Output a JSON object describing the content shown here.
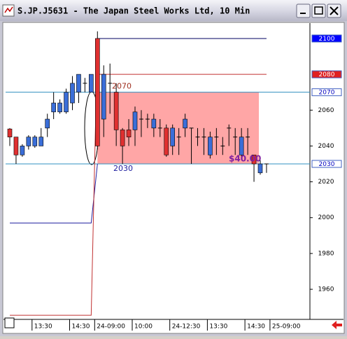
{
  "chart_data": {
    "type": "candlestick",
    "title": "S.JP.J5631 - The Japan Steel Works Ltd, 10 Min",
    "categories": [
      null,
      null,
      null,
      null,
      "13:30",
      null,
      null,
      null,
      null,
      null,
      "14:30",
      null,
      null,
      null,
      "24-09:00",
      null,
      null,
      null,
      null,
      null,
      "10:00",
      null,
      null,
      null,
      null,
      null,
      "24-12:30",
      null,
      null,
      null,
      null,
      null,
      "13:30",
      null,
      null,
      null,
      null,
      null,
      "14:30",
      null,
      null,
      null,
      "25-09:00"
    ],
    "open": [
      2049.5,
      2045,
      2035,
      2040,
      2040,
      2040,
      2050,
      2059,
      2059,
      2059,
      2064,
      2070,
      2075,
      2070,
      2100,
      2055,
      2075,
      2070,
      2049,
      2049,
      2049,
      2055,
      2055,
      2050,
      2050,
      2050,
      2040,
      2045,
      2050,
      2050,
      2045,
      2045,
      2035,
      2045,
      2040,
      2050,
      2045,
      2035,
      2045,
      2035,
      2025,
      2030,
      null
    ],
    "high": [
      2050,
      2045,
      2041,
      2046,
      2046,
      2050,
      2058,
      2070,
      2066,
      2072,
      2079,
      2080,
      2078,
      2080,
      2104,
      2085,
      2086,
      2075,
      2050,
      2055,
      2062,
      2060,
      2058,
      2058,
      2055,
      2052,
      2052,
      2050,
      2058,
      2050,
      2050,
      2050,
      2048,
      2050,
      2045,
      2052,
      2050,
      2050,
      2050,
      2035,
      2032,
      2030,
      null
    ],
    "low": [
      2040,
      2030,
      2034,
      2038,
      2039,
      2040,
      2045,
      2055,
      2058,
      2058,
      2060,
      2064,
      2070,
      2070,
      2038,
      2045,
      2058,
      2040,
      2030,
      2040,
      2040,
      2045,
      2050,
      2045,
      2045,
      2034,
      2035,
      2035,
      2045,
      2030,
      2040,
      2035,
      2033,
      2035,
      2035,
      2040,
      2035,
      2033,
      2035,
      2020,
      2024,
      2025,
      null
    ],
    "close": [
      2045,
      2035,
      2040,
      2045,
      2045,
      2045,
      2055,
      2064,
      2064,
      2070,
      2075,
      2080,
      2075,
      2080,
      2040,
      2080,
      2075,
      2049,
      2040,
      2045,
      2059,
      2055,
      2055,
      2055,
      2050,
      2035,
      2050,
      2045,
      2055,
      2050,
      2045,
      2045,
      2045,
      2045,
      2040,
      2050,
      2045,
      2045,
      2045,
      2030,
      2030,
      2030,
      null
    ],
    "up_color": "#3a6ed8",
    "down_color": "#e03030",
    "lines": [
      {
        "color": "#2020a0",
        "values": [
          1997,
          1997,
          1997,
          1997,
          1997,
          1997,
          1997,
          1997,
          1997,
          1997,
          1997,
          1997,
          1997,
          1997,
          2030,
          null,
          null,
          null,
          null,
          null,
          null,
          null,
          null,
          null,
          null,
          null,
          null,
          null,
          null,
          null,
          null,
          null,
          null,
          null,
          null,
          null,
          null,
          null,
          null,
          null,
          null,
          null,
          null
        ]
      },
      {
        "color": "#c03030",
        "values": [
          1945.5,
          1945.5,
          1945.5,
          1945.5,
          1945.5,
          1945.5,
          1945.5,
          1945.5,
          1945.5,
          1945.5,
          1945.5,
          1945.5,
          1945.5,
          1945.5,
          2100,
          null,
          null,
          null,
          null,
          null,
          null,
          null,
          null,
          null,
          null,
          null,
          null,
          null,
          null,
          null,
          null,
          null,
          null,
          null,
          null,
          null,
          null,
          null,
          null,
          null,
          null,
          null,
          null
        ]
      }
    ],
    "levels": [
      {
        "value": 2100,
        "color": "#000060",
        "box": "#0000ff",
        "text_color": "#ffffff",
        "full": false
      },
      {
        "value": 2080,
        "color": "#c03030",
        "box": "#e02020",
        "text_color": "#ffffff",
        "full": false
      },
      {
        "value": 2070,
        "color": "#3090c0",
        "box": "#ffffff",
        "text_color": "#0000c0",
        "full": true
      },
      {
        "value": 2030,
        "color": "#3090c0",
        "box": "#ffffff",
        "text_color": "#0000c0",
        "full": true
      }
    ],
    "range": {
      "low": 2030,
      "high": 2070,
      "label": "$40.00",
      "color": "#ff8080"
    },
    "ylim": [
      1943.6,
      2107.8
    ],
    "yticks": [
      1960,
      1980,
      2000,
      2020,
      2040,
      2060
    ]
  }
}
